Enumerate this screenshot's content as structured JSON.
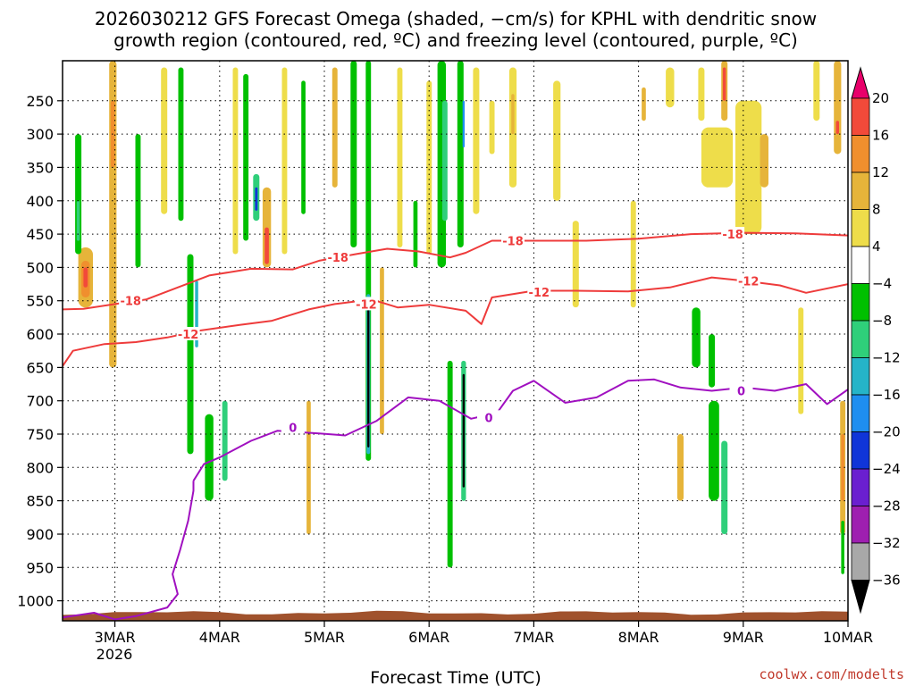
{
  "title": {
    "line1": "2026030212 GFS Forecast Omega (shaded, −cm/s) for KPHL with dendritic snow",
    "line2": "growth region (contoured, red, ºC) and freezing level (contoured, purple, ºC)"
  },
  "xlabel": "Forecast Time (UTC)",
  "credit": "coolwx.com/modelts",
  "chart_data": {
    "type": "heatmap",
    "x_axis": {
      "ticks": [
        "3MAR",
        "4MAR",
        "5MAR",
        "6MAR",
        "7MAR",
        "8MAR",
        "9MAR",
        "10MAR"
      ],
      "sub_label": "2026",
      "range_days": [
        2.5,
        10.0
      ]
    },
    "y_axis": {
      "ticks": [
        250,
        300,
        350,
        400,
        450,
        500,
        550,
        600,
        650,
        700,
        750,
        800,
        850,
        900,
        950,
        1000
      ],
      "range_hpa": [
        1030,
        190
      ]
    },
    "colorbar": {
      "levels": [
        20,
        16,
        12,
        8,
        4,
        -4,
        -8,
        -12,
        -16,
        -20,
        -24,
        -28,
        -32,
        -36
      ],
      "colors": [
        "#e8006a",
        "#f24a3a",
        "#f08f2e",
        "#e6b43a",
        "#eedd4a",
        "#ffffff",
        "#00c000",
        "#2fcf7a",
        "#25b4c8",
        "#1e8ef0",
        "#1035d8",
        "#6a1fd0",
        "#9e1fb0",
        "#a8a8a8",
        "#000000"
      ]
    },
    "contours": [
      {
        "label": "-18",
        "color": "#ee3b3b",
        "points": [
          [
            2.5,
            563
          ],
          [
            2.7,
            562
          ],
          [
            3.0,
            555
          ],
          [
            3.3,
            548
          ],
          [
            3.6,
            530
          ],
          [
            3.9,
            512
          ],
          [
            4.3,
            502
          ],
          [
            4.7,
            503
          ],
          [
            4.95,
            490
          ],
          [
            5.3,
            480
          ],
          [
            5.6,
            472
          ],
          [
            5.9,
            476
          ],
          [
            6.2,
            485
          ],
          [
            6.35,
            478
          ],
          [
            6.6,
            460
          ],
          [
            7.0,
            460
          ],
          [
            7.5,
            460
          ],
          [
            8.0,
            457
          ],
          [
            8.5,
            450
          ],
          [
            9.0,
            448
          ],
          [
            9.5,
            449
          ],
          [
            10.0,
            452
          ]
        ],
        "labels_at": [
          [
            3.15,
            550
          ],
          [
            5.13,
            485
          ],
          [
            6.8,
            460
          ],
          [
            8.9,
            450
          ]
        ]
      },
      {
        "label": "-12",
        "color": "#ee3b3b",
        "points": [
          [
            2.5,
            648
          ],
          [
            2.6,
            625
          ],
          [
            2.9,
            615
          ],
          [
            3.2,
            612
          ],
          [
            3.5,
            605
          ],
          [
            3.8,
            595
          ],
          [
            4.2,
            586
          ],
          [
            4.5,
            580
          ],
          [
            4.85,
            563
          ],
          [
            5.1,
            555
          ],
          [
            5.45,
            548
          ],
          [
            5.7,
            560
          ],
          [
            6.0,
            556
          ],
          [
            6.35,
            565
          ],
          [
            6.5,
            585
          ],
          [
            6.6,
            545
          ],
          [
            7.0,
            535
          ],
          [
            7.4,
            535
          ],
          [
            7.9,
            536
          ],
          [
            8.3,
            530
          ],
          [
            8.7,
            515
          ],
          [
            9.0,
            520
          ],
          [
            9.35,
            527
          ],
          [
            9.6,
            538
          ],
          [
            10.0,
            525
          ]
        ],
        "labels_at": [
          [
            3.7,
            600
          ],
          [
            5.4,
            555
          ],
          [
            7.05,
            537
          ],
          [
            9.05,
            520
          ]
        ]
      },
      {
        "label": "0",
        "color": "#a010c0",
        "points": [
          [
            3.75,
            820
          ],
          [
            3.85,
            795
          ],
          [
            4.0,
            785
          ],
          [
            4.3,
            760
          ],
          [
            4.55,
            745
          ],
          [
            4.95,
            749
          ],
          [
            5.2,
            752
          ],
          [
            5.5,
            730
          ],
          [
            5.8,
            695
          ],
          [
            6.1,
            700
          ],
          [
            6.4,
            727
          ],
          [
            6.65,
            718
          ],
          [
            6.8,
            685
          ],
          [
            7.0,
            670
          ],
          [
            7.3,
            703
          ],
          [
            7.6,
            695
          ],
          [
            7.9,
            670
          ],
          [
            8.15,
            668
          ],
          [
            8.4,
            680
          ],
          [
            8.7,
            685
          ],
          [
            9.0,
            680
          ],
          [
            9.3,
            685
          ],
          [
            9.6,
            675
          ],
          [
            9.8,
            705
          ],
          [
            10.0,
            683
          ]
        ],
        "labels_at": [
          [
            4.7,
            740
          ],
          [
            6.57,
            725
          ],
          [
            8.98,
            685
          ]
        ]
      },
      {
        "label": "0",
        "color": "#a010c0",
        "points": [
          [
            2.5,
            1025
          ],
          [
            2.8,
            1018
          ],
          [
            3.0,
            1028
          ],
          [
            3.2,
            1023
          ],
          [
            3.5,
            1010
          ],
          [
            3.6,
            990
          ],
          [
            3.55,
            960
          ],
          [
            3.62,
            925
          ],
          [
            3.7,
            880
          ],
          [
            3.75,
            835
          ],
          [
            3.75,
            820
          ]
        ],
        "labels_at": []
      }
    ],
    "omega_regions": [
      {
        "x": 2.98,
        "p0": 190,
        "p1": 650,
        "w": 0.07,
        "level": 8
      },
      {
        "x": 2.98,
        "p0": 250,
        "p1": 350,
        "w": 0.04,
        "level": 12
      },
      {
        "x": 2.72,
        "p0": 470,
        "p1": 560,
        "w": 0.14,
        "level": 8
      },
      {
        "x": 2.72,
        "p0": 490,
        "p1": 545,
        "w": 0.08,
        "level": 12
      },
      {
        "x": 2.72,
        "p0": 500,
        "p1": 530,
        "w": 0.04,
        "level": 16
      },
      {
        "x": 2.65,
        "p0": 300,
        "p1": 480,
        "w": 0.06,
        "level": -8
      },
      {
        "x": 2.65,
        "p0": 400,
        "p1": 460,
        "w": 0.03,
        "level": -12
      },
      {
        "x": 3.22,
        "p0": 300,
        "p1": 500,
        "w": 0.05,
        "level": -8
      },
      {
        "x": 3.47,
        "p0": 200,
        "p1": 420,
        "w": 0.06,
        "level": 4
      },
      {
        "x": 3.63,
        "p0": 200,
        "p1": 430,
        "w": 0.05,
        "level": -8
      },
      {
        "x": 3.72,
        "p0": 480,
        "p1": 780,
        "w": 0.06,
        "level": -8
      },
      {
        "x": 3.78,
        "p0": 520,
        "p1": 620,
        "w": 0.03,
        "level": -16
      },
      {
        "x": 3.9,
        "p0": 720,
        "p1": 850,
        "w": 0.08,
        "level": -8
      },
      {
        "x": 4.05,
        "p0": 700,
        "p1": 820,
        "w": 0.05,
        "level": -12
      },
      {
        "x": 4.15,
        "p0": 200,
        "p1": 480,
        "w": 0.05,
        "level": 4
      },
      {
        "x": 4.25,
        "p0": 210,
        "p1": 460,
        "w": 0.05,
        "level": -8
      },
      {
        "x": 4.45,
        "p0": 380,
        "p1": 500,
        "w": 0.08,
        "level": 8
      },
      {
        "x": 4.45,
        "p0": 440,
        "p1": 495,
        "w": 0.04,
        "level": 16
      },
      {
        "x": 4.35,
        "p0": 360,
        "p1": 430,
        "w": 0.06,
        "level": -12
      },
      {
        "x": 4.35,
        "p0": 380,
        "p1": 415,
        "w": 0.025,
        "level": -24
      },
      {
        "x": 4.62,
        "p0": 200,
        "p1": 480,
        "w": 0.05,
        "level": 4
      },
      {
        "x": 4.8,
        "p0": 220,
        "p1": 420,
        "w": 0.04,
        "level": -8
      },
      {
        "x": 4.85,
        "p0": 700,
        "p1": 900,
        "w": 0.04,
        "level": 8
      },
      {
        "x": 5.1,
        "p0": 200,
        "p1": 380,
        "w": 0.05,
        "level": 8
      },
      {
        "x": 5.28,
        "p0": 190,
        "p1": 470,
        "w": 0.06,
        "level": -8
      },
      {
        "x": 5.42,
        "p0": 190,
        "p1": 790,
        "w": 0.05,
        "level": -8
      },
      {
        "x": 5.42,
        "p0": 540,
        "p1": 780,
        "w": 0.035,
        "level": -16
      },
      {
        "x": 5.42,
        "p0": 560,
        "p1": 770,
        "w": 0.02,
        "level": -36
      },
      {
        "x": 5.55,
        "p0": 500,
        "p1": 750,
        "w": 0.04,
        "level": 8
      },
      {
        "x": 5.72,
        "p0": 200,
        "p1": 470,
        "w": 0.05,
        "level": 4
      },
      {
        "x": 5.87,
        "p0": 400,
        "p1": 500,
        "w": 0.04,
        "level": -8
      },
      {
        "x": 6.0,
        "p0": 220,
        "p1": 480,
        "w": 0.05,
        "level": 4
      },
      {
        "x": 6.12,
        "p0": 190,
        "p1": 500,
        "w": 0.08,
        "level": -8
      },
      {
        "x": 6.15,
        "p0": 250,
        "p1": 430,
        "w": 0.05,
        "level": -12
      },
      {
        "x": 6.3,
        "p0": 190,
        "p1": 470,
        "w": 0.06,
        "level": -8
      },
      {
        "x": 6.33,
        "p0": 250,
        "p1": 320,
        "w": 0.02,
        "level": -20
      },
      {
        "x": 6.2,
        "p0": 640,
        "p1": 950,
        "w": 0.05,
        "level": -8
      },
      {
        "x": 6.33,
        "p0": 640,
        "p1": 850,
        "w": 0.045,
        "level": -12
      },
      {
        "x": 6.33,
        "p0": 660,
        "p1": 830,
        "w": 0.02,
        "level": -36
      },
      {
        "x": 6.45,
        "p0": 200,
        "p1": 420,
        "w": 0.06,
        "level": 4
      },
      {
        "x": 6.6,
        "p0": 250,
        "p1": 330,
        "w": 0.05,
        "level": 4
      },
      {
        "x": 6.8,
        "p0": 200,
        "p1": 380,
        "w": 0.07,
        "level": 4
      },
      {
        "x": 6.8,
        "p0": 240,
        "p1": 300,
        "w": 0.03,
        "level": 8
      },
      {
        "x": 7.22,
        "p0": 220,
        "p1": 400,
        "w": 0.07,
        "level": 4
      },
      {
        "x": 8.05,
        "p0": 230,
        "p1": 280,
        "w": 0.04,
        "level": 8
      },
      {
        "x": 8.3,
        "p0": 200,
        "p1": 260,
        "w": 0.08,
        "level": 4
      },
      {
        "x": 8.6,
        "p0": 200,
        "p1": 280,
        "w": 0.06,
        "level": 4
      },
      {
        "x": 8.82,
        "p0": 190,
        "p1": 280,
        "w": 0.06,
        "level": 8
      },
      {
        "x": 8.82,
        "p0": 200,
        "p1": 250,
        "w": 0.03,
        "level": 16
      },
      {
        "x": 8.75,
        "p0": 290,
        "p1": 380,
        "w": 0.3,
        "level": 4
      },
      {
        "x": 9.05,
        "p0": 250,
        "p1": 450,
        "w": 0.25,
        "level": 4
      },
      {
        "x": 9.2,
        "p0": 300,
        "p1": 380,
        "w": 0.08,
        "level": 8
      },
      {
        "x": 9.7,
        "p0": 190,
        "p1": 280,
        "w": 0.06,
        "level": 4
      },
      {
        "x": 9.9,
        "p0": 190,
        "p1": 330,
        "w": 0.07,
        "level": 8
      },
      {
        "x": 9.9,
        "p0": 280,
        "p1": 300,
        "w": 0.03,
        "level": 16
      },
      {
        "x": 8.55,
        "p0": 560,
        "p1": 650,
        "w": 0.08,
        "level": -8
      },
      {
        "x": 8.72,
        "p0": 700,
        "p1": 850,
        "w": 0.1,
        "level": -8
      },
      {
        "x": 8.82,
        "p0": 760,
        "p1": 900,
        "w": 0.06,
        "level": -12
      },
      {
        "x": 8.7,
        "p0": 600,
        "p1": 680,
        "w": 0.06,
        "level": -8
      },
      {
        "x": 7.4,
        "p0": 430,
        "p1": 560,
        "w": 0.06,
        "level": 4
      },
      {
        "x": 7.95,
        "p0": 400,
        "p1": 560,
        "w": 0.05,
        "level": 4
      },
      {
        "x": 8.4,
        "p0": 750,
        "p1": 850,
        "w": 0.06,
        "level": 8
      },
      {
        "x": 9.55,
        "p0": 560,
        "p1": 720,
        "w": 0.05,
        "level": 4
      },
      {
        "x": 9.95,
        "p0": 700,
        "p1": 900,
        "w": 0.05,
        "level": 8
      },
      {
        "x": 9.95,
        "p0": 750,
        "p1": 850,
        "w": 0.03,
        "level": 12
      },
      {
        "x": 9.95,
        "p0": 880,
        "p1": 960,
        "w": 0.03,
        "level": -8
      }
    ],
    "ground": {
      "color": "#a0522d",
      "top_hpa": 1018
    }
  }
}
